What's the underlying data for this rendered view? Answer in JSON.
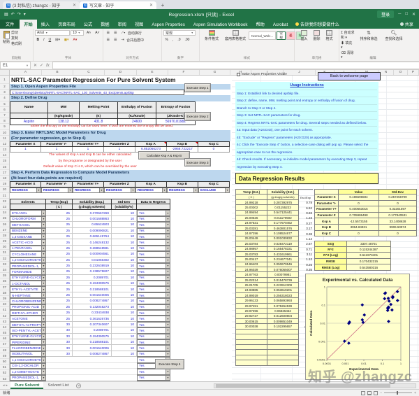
{
  "browser": {
    "tab1": "(3 封私信) zhangzc - 知乎",
    "tab2": "写文章 - 知乎"
  },
  "titlebar": {
    "title": "Regression.xlsm [只读] - Excel",
    "signin": "登录"
  },
  "ribbon": {
    "tabs": [
      "文件",
      "开始",
      "插入",
      "页面布局",
      "公式",
      "数据",
      "审阅",
      "视图",
      "Aspen Properties",
      "Aspen Simulation Workbook",
      "帮助",
      "Acrobat"
    ],
    "active_tab": "开始",
    "tell_me": "告诉我你想要做什么",
    "share": "共享",
    "paste": "粘贴",
    "cut": "剪切",
    "copy": "复制",
    "painter": "格式刷",
    "font_name": "Arial",
    "font_size": "10",
    "wrap": "自动换行",
    "merge": "合并后居中",
    "number_format": "常规",
    "conditional": "条件格式",
    "format_table": "套用表格格式",
    "style_gallery": [
      "Normal_Welc...",
      "常规",
      "差",
      "好"
    ],
    "cells": [
      "插入",
      "删除",
      "格式"
    ],
    "autosum": "自动求和",
    "fill": "填充",
    "clear": "清除",
    "sort": "排序和筛选",
    "find": "查找和选择",
    "groups": [
      "剪贴板",
      "字体",
      "对齐方式",
      "数字",
      "样式",
      "单元格",
      "编辑"
    ]
  },
  "formula_bar": {
    "cell_ref": "E1"
  },
  "columns": [
    "A",
    "B",
    "C",
    "D",
    "E",
    "F",
    "G",
    "H",
    "I",
    "J",
    "K",
    "L",
    "M",
    "N",
    "O",
    "P"
  ],
  "sheet": {
    "title": "NRTL-SAC Parameter Regression For Pure Solvent System",
    "step1": {
      "heading": "Step 1. Open Aspen Properties File",
      "path": "C:\\Users\\songy\\Desktop\\NRTL-SAC\\NRTL-SAC_130_Solvents_43_Excipients.aprbkp",
      "button": "Execute Step 1"
    },
    "step2": {
      "heading": "Step 2. Define Drug",
      "button": "Execute Step 2",
      "headers": [
        "Name",
        "MW",
        "Melting Point",
        "Enthalpy of Fusion",
        "Entropy of Fusion"
      ],
      "units": [
        "",
        "(Kg/Kgmole)",
        "(K)",
        "(KJ/Kmole)",
        "(J/Kmole-K)"
      ],
      "row": [
        "Aspirin",
        "138.12",
        "431.8",
        "24600",
        "56970.81982"
      ],
      "note": "Either the entropy or the enthalpy can be used here. If both are entered the entropy will be used."
    },
    "step3": {
      "heading": "Step 3. Enter NRTLSAC Model Parameters for Drug",
      "subheading": "(For parameter regression, go to Step 4)",
      "param_headers": [
        "Parameter X",
        "Parameter Y-",
        "Parameter Y+",
        "Parameter Z",
        "Ksp A",
        "Ksp B",
        "Ksp C"
      ],
      "param_values": [
        "1",
        "1",
        "1",
        "1",
        "6.852066273",
        "-2958.722217",
        "0"
      ],
      "notes": [
        "The values of Ksp A and Ksp B can be either calculated",
        "by the programe or designated by the user",
        "Default value of Ksp C is 0, which can be overrided by the user"
      ],
      "calc_button": "Calculate Ksp A  &  Ksp B",
      "button": "Execute Step 3"
    },
    "step4": {
      "heading": "Step 4. Perform Data Regression to Compute Model Parameters",
      "subheading": "(At least four data points are required)",
      "param_headers": [
        "Parameter X",
        "Parameter Y-",
        "Parameter Y+",
        "Parameter Z",
        "Ksp A",
        "Ksp B",
        "Ksp C"
      ],
      "regress_options": [
        "REGRESS",
        "REGRESS",
        "REGRESS",
        "REGRESS",
        "REGRESS",
        "REGRESS",
        "EXCLUDE"
      ],
      "data_headers": [
        "Solvents",
        "Temp (Exp)",
        "Solubility (Exp.)",
        "Std-Dev",
        "Data to Regress"
      ],
      "data_units": [
        "",
        "( C )",
        "(g drug/g solvents)",
        "(solubility/%)",
        ""
      ],
      "button": "Execute Step 4"
    },
    "solvent_rows": [
      {
        "name": "ETHANOL",
        "temp": "25",
        "sol": "0.370667269",
        "std": "10",
        "regress": "Yes"
      },
      {
        "name": "CHLOROFORM",
        "temp": "25",
        "sol": "0.001688863",
        "std": "10",
        "regress": "Yes"
      },
      {
        "name": "METHANOL",
        "temp": "25",
        "sol": "0.65624503",
        "std": "10",
        "regress": "Yes"
      },
      {
        "name": "BENZENE",
        "temp": "25",
        "sol": "0.009090821",
        "std": "10",
        "regress": "Yes"
      },
      {
        "name": "1,4-DIOXANE",
        "temp": "25",
        "sol": "0.665149764",
        "std": "10",
        "regress": "Yes"
      },
      {
        "name": "ACETIC-ACID",
        "temp": "25",
        "sol": "0.146248132",
        "std": "10",
        "regress": "Yes"
      },
      {
        "name": "1-PENTANOL",
        "temp": "25",
        "sol": "0.288548591",
        "std": "10",
        "regress": "Yes"
      },
      {
        "name": "CYCLOHEXANE",
        "temp": "25",
        "sol": "0.000904561",
        "std": "10",
        "regress": "Yes"
      },
      {
        "name": "1,2-DICHLOROETH",
        "temp": "25",
        "sol": "0.01066302",
        "std": "10",
        "regress": "Yes"
      },
      {
        "name": "PROPANEDIOL-1,",
        "temp": "25",
        "sol": "0.232638919",
        "std": "10",
        "regress": "Yes"
      },
      {
        "name": "FORMAMIDE",
        "temp": "25",
        "sol": "0.138575827",
        "std": "10",
        "regress": "Yes"
      },
      {
        "name": "ETHYLENE-GLYCO",
        "temp": "25",
        "sol": "0.2089701",
        "std": "10",
        "regress": "Yes"
      },
      {
        "name": "1-OCTANOL",
        "temp": "25",
        "sol": "0.194390575",
        "std": "10",
        "regress": "Yes"
      },
      {
        "name": "ETHYL-ACETATE",
        "temp": "25",
        "sol": "0.218588101",
        "std": "10",
        "regress": "Yes"
      },
      {
        "name": "N-HEPTANE",
        "temp": "25",
        "sol": "0.001540006",
        "std": "10",
        "regress": "Yes"
      },
      {
        "name": "CHLOROBENZENE",
        "temp": "25",
        "sol": "0.008274867",
        "std": "10",
        "regress": "Yes"
      },
      {
        "name": "PROPIONIC-ACID",
        "temp": "25",
        "sol": "0.132048273",
        "std": "10",
        "regress": "Yes"
      },
      {
        "name": "DIETHYL-ETHER",
        "temp": "25",
        "sol": "0.33434938",
        "std": "10",
        "regress": "Yes"
      },
      {
        "name": "ACETONE",
        "temp": "25",
        "sol": "0.361626736",
        "std": "10",
        "regress": "Yes"
      },
      {
        "name": "METHYL-N-PROPY",
        "temp": "30",
        "sol": "0.207340607",
        "std": "10",
        "regress": "Yes"
      },
      {
        "name": "ISO-PENTYL-ACET",
        "temp": "30",
        "sol": "0.2089701",
        "std": "10",
        "regress": "Yes"
      },
      {
        "name": "ETHYLENE-GLYCO",
        "temp": "30",
        "sol": "0.194390575",
        "std": "10",
        "regress": "Yes"
      },
      {
        "name": "PIPERIDINE",
        "temp": "30",
        "sol": "0.218588101",
        "std": "10",
        "regress": "Yes"
      },
      {
        "name": "FLUOROBENZENE",
        "temp": "30",
        "sol": "0.001540006",
        "std": "10",
        "regress": "Yes"
      },
      {
        "name": "ISOBUTANOL",
        "temp": "30",
        "sol": "0.008274867",
        "std": "10",
        "regress": "Yes"
      }
    ],
    "extra_solvent_rows": [
      {
        "name": "1,1-DICHLOROETH",
        "regress": "Yes"
      },
      {
        "name": "CIS-1,2-DICHLOR",
        "regress": "Yes"
      },
      {
        "name": "1,2-DIMETHOXYE",
        "regress": "Yes"
      },
      {
        "name": "PROPANEDIOL-1,",
        "regress": "Yes"
      },
      {
        "name": "PROPANEDIOL-1,",
        "regress": "Yes"
      }
    ]
  },
  "right": {
    "checkbox_label": "Make Aspen Properties Visible",
    "back_button": "Back to welcome page",
    "usage": {
      "title": "Usage Instructions",
      "lines": [
        "Step 1: Establish link to desired aprbkp file.",
        "Step 2: define, name, MW, melting point and entropy or enthalpy of fusion of drug.",
        "Branch to Step 3 or Step 4.",
        "Step 3: Set NRTL-SAC parameters for drug.",
        "Step 4: Regress NRTL-SAC parameters for drug.  Several steps needed as defined below.",
        "  4a:   Input data (A24:D43), one point for each solvent.",
        "  4b:  \"Exclude\" or \"Regress\" parameters (A20:G20) as appropriate.",
        "  4c:   Click the \"Execute Step 4\" button, a selection-case dialog will pop up. Please select the",
        "appropriate case to run the regression.",
        "  4d:   Check results. If necessary, re-initialize model parameters by executing Step 3, repeat",
        "regression by executing Step 4."
      ],
      "warning": "If there are any usage errors during the steps, go back to step 1 to re-initialize the files."
    },
    "results": {
      "heading": "Data Regression Results",
      "left_headers": [
        "Temp (Est.)",
        "Solubility (Est.)",
        ""
      ],
      "left_units": [
        "( C )",
        "(g drug/g solvents)",
        "Est./Exp"
      ],
      "rows": [
        {
          "temp": "24.99218",
          "sol": "0.287392975",
          "ratio": "0.78"
        },
        {
          "temp": "25.00302",
          "sol": "0.01155223",
          "ratio": "6.84"
        },
        {
          "temp": "24.99494",
          "sol": "0.547125441",
          "ratio": "0.83"
        },
        {
          "temp": "25.00526",
          "sol": "0.011170502",
          "ratio": "1.23"
        },
        {
          "temp": "24.97531",
          "sol": "0.177570462",
          "ratio": "0.27"
        },
        {
          "temp": "25.03281",
          "sol": "0.463801576",
          "ratio": "3.17"
        },
        {
          "temp": "24.97296",
          "sol": "0.108524677",
          "ratio": "0.38"
        },
        {
          "temp": "25.00449",
          "sol": "0.001030832",
          "ratio": "1.14"
        },
        {
          "temp": "25.03784",
          "sol": "0.028472119",
          "ratio": "2.67"
        },
        {
          "temp": "24.98957",
          "sol": "0.165478331",
          "ratio": "0.71"
        },
        {
          "temp": "25.03783",
          "sol": "0.431619961",
          "ratio": "3.11"
        },
        {
          "temp": "25.00417",
          "sol": "0.234677041",
          "ratio": "1.12"
        },
        {
          "temp": "24.96403",
          "sol": "0.050670546",
          "ratio": "0.26"
        },
        {
          "temp": "24.96029",
          "sol": "0.076055007",
          "ratio": "0.35"
        },
        {
          "temp": "24.97763",
          "sol": "0.00079981",
          "ratio": "0.52"
        },
        {
          "temp": "25.02314",
          "sol": "0.015478739",
          "ratio": "1.87"
        },
        {
          "temp": "25.01705",
          "sol": "0.223912309",
          "ratio": "1.70"
        },
        {
          "temp": "24.93885",
          "sol": "0.053619201",
          "ratio": "0.16"
        },
        {
          "temp": "24.99019",
          "sol": "0.256318023",
          "ratio": "0.71"
        },
        {
          "temp": "29.96133",
          "sol": "0.065893993",
          "ratio": "0.32"
        },
        {
          "temp": "29.97451",
          "sol": "0.075264539",
          "ratio": "0.36"
        },
        {
          "temp": "29.97396",
          "sol": "0.06825452",
          "ratio": "0.35"
        },
        {
          "temp": "29.92727",
          "sol": "0.012600804",
          "ratio": "0.06"
        },
        {
          "temp": "30.00615",
          "sol": "0.009851049",
          "ratio": "6.40"
        },
        {
          "temp": "30.00038",
          "sol": "0.102295657",
          "ratio": "12.36"
        }
      ],
      "empty_rows": 7,
      "param_table": {
        "headers": [
          "",
          "Value",
          "Std-Dev"
        ],
        "rows": [
          [
            "Parameter X",
            "0.196596594",
            "0.257256709"
          ],
          [
            "Parameter Y-",
            "0",
            "0"
          ],
          [
            "Parameter Y+",
            "0.400653015",
            "0.32201597"
          ],
          [
            "Parameter Z",
            "0.705986498",
            "0.177840531"
          ],
          [
            "Ksp A",
            "-12.5573155",
            "33.1408628"
          ],
          [
            "Ksp B",
            "3064.84931",
            "9906.50974"
          ],
          [
            "Ksp C",
            "0",
            "0"
          ]
        ]
      },
      "stats": [
        [
          "SSQ",
          "3307.48701"
        ],
        [
          "R^2",
          "0.115244387"
        ],
        [
          "R^2 (Log)",
          "0.641973401"
        ],
        [
          "RMSE",
          "0.170432215"
        ],
        [
          "RMSE (Log)",
          "0.543580316"
        ]
      ]
    }
  },
  "chart_data": {
    "type": "scatter",
    "title": "Experimental vs. Calculated Data",
    "xlabel": "Experimental Data",
    "ylabel": "Calculated Data",
    "x_scale": "log",
    "y_scale": "log",
    "xlim": [
      0.0001,
      1
    ],
    "ylim": [
      0.0001,
      1
    ],
    "xticks": [
      0.0001,
      0.001,
      0.01,
      0.1,
      1
    ],
    "yticks": [
      0.0001,
      0.001,
      0.01,
      0.1,
      1
    ],
    "grid": "horizontal",
    "reference_line": "y = x",
    "point_color": "#000080",
    "line_color": "#cc7088",
    "points": [
      [
        0.370667269,
        0.287392975
      ],
      [
        0.001688863,
        0.01155223
      ],
      [
        0.65624503,
        0.547125441
      ],
      [
        0.009090821,
        0.011170502
      ],
      [
        0.665149764,
        0.177570462
      ],
      [
        0.146248132,
        0.463801576
      ],
      [
        0.288548591,
        0.108524677
      ],
      [
        0.000904561,
        0.001030832
      ],
      [
        0.01066302,
        0.028472119
      ],
      [
        0.232638919,
        0.165478331
      ],
      [
        0.138575827,
        0.431619961
      ],
      [
        0.2089701,
        0.234677041
      ],
      [
        0.194390575,
        0.050670546
      ],
      [
        0.218588101,
        0.076055007
      ],
      [
        0.001540006,
        0.00079981
      ],
      [
        0.008274867,
        0.015478739
      ],
      [
        0.132048273,
        0.223912309
      ],
      [
        0.33434938,
        0.053619201
      ],
      [
        0.361626736,
        0.256318023
      ],
      [
        0.207340607,
        0.065893993
      ],
      [
        0.2089701,
        0.075264539
      ],
      [
        0.194390575,
        0.06825452
      ],
      [
        0.218588101,
        0.012600804
      ],
      [
        0.001540006,
        0.009851049
      ],
      [
        0.008274867,
        0.102295657
      ]
    ]
  },
  "sheet_tabs": {
    "tabs": [
      "Pure Solvent",
      "Solvent List"
    ],
    "active": "Pure Solvent"
  },
  "status_bar": {
    "ready": "就绪"
  },
  "watermark": "知乎 @zhangzc",
  "colors": {
    "excel_green": "#217346",
    "step_band": "#bdd7ee",
    "usage_bg": "#ccffff",
    "results_bg": "#ffffcc",
    "results_heading_bg": "#ffff99",
    "value_text": "#2a2ad4",
    "warning_text": "#e02020",
    "chart_point": "#000080",
    "chart_line": "#cc7088"
  }
}
